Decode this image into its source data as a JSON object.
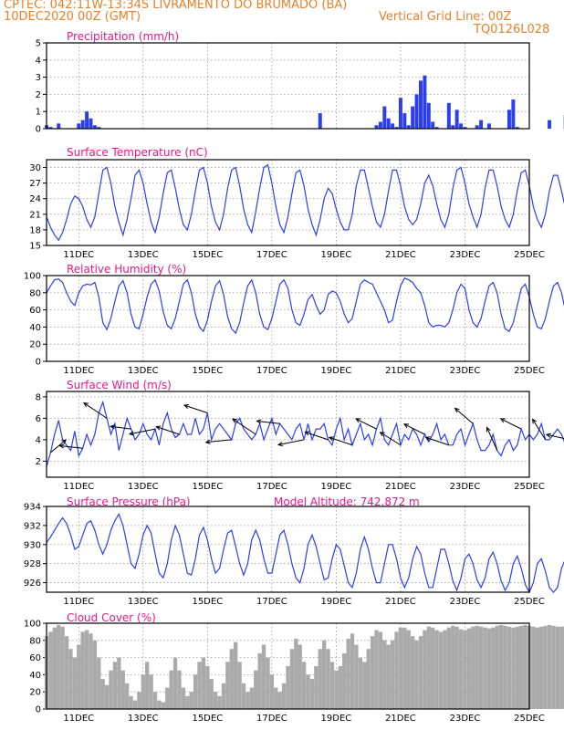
{
  "header": {
    "line1_left": "CPTEC:   042:11W-13:34S   LIVRAMENTO DO BRUMADO (BA)",
    "line2_left": "10DEC2020 00Z (GMT)",
    "line2_right": "Vertical Grid Line: 00Z",
    "line3_right": "TQ0126L028"
  },
  "colors": {
    "header": "#e8802a",
    "title": "#e8178a",
    "series": "#2b3ff0",
    "cloud": "#aaaaaa"
  },
  "chart_data": [
    {
      "type": "bar",
      "title": "Precipitation (mm/h)",
      "ylim": [
        0,
        5
      ],
      "yticks": [
        0,
        1,
        2,
        3,
        4,
        5
      ],
      "x_start_hour": 0,
      "step_hours": 3,
      "values": [
        0.2,
        0.1,
        0,
        0.3,
        0,
        0,
        0,
        0,
        0.3,
        0.5,
        1.0,
        0.6,
        0.2,
        0.1,
        0,
        0,
        0,
        0,
        0,
        0,
        0,
        0,
        0,
        0,
        0,
        0,
        0,
        0,
        0,
        0,
        0,
        0,
        0,
        0,
        0,
        0,
        0,
        0,
        0,
        0,
        0,
        0,
        0,
        0,
        0,
        0,
        0,
        0,
        0,
        0,
        0,
        0,
        0,
        0,
        0,
        0,
        0,
        0,
        0,
        0,
        0,
        0,
        0,
        0,
        0,
        0,
        0,
        0,
        0.9,
        0,
        0,
        0,
        0,
        0,
        0,
        0,
        0,
        0,
        0,
        0,
        0,
        0,
        0.2,
        0.4,
        1.3,
        0.6,
        0.3,
        0.1,
        1.8,
        0.9,
        0.2,
        1.3,
        2.0,
        2.8,
        3.1,
        1.5,
        0.4,
        0.1,
        0,
        0,
        1.5,
        0.2,
        1.1,
        0.3,
        0.1,
        0,
        0,
        0.2,
        0.5,
        0,
        0.3,
        0,
        0,
        0,
        0,
        1.1,
        1.7,
        0.1,
        0,
        0,
        0,
        0,
        0,
        0,
        0,
        0.5,
        0,
        0,
        0,
        0.8,
        0.3,
        0,
        0,
        0,
        0,
        0,
        0,
        0,
        0,
        0,
        0,
        0.3,
        0.9,
        0,
        0,
        0,
        0,
        0,
        0,
        0,
        0,
        0,
        0,
        0
      ]
    },
    {
      "type": "line",
      "title": "Surface Temperature (nC)",
      "ylim": [
        15,
        31.5
      ],
      "yticks": [
        15,
        18,
        21,
        24,
        27,
        30
      ],
      "x_start_hour": 0,
      "step_hours": 3,
      "values": [
        20.5,
        18.5,
        17.0,
        16.0,
        17.5,
        20.0,
        23.0,
        24.5,
        24.0,
        22.5,
        20.0,
        18.5,
        20.5,
        25.0,
        29.5,
        30.0,
        27.0,
        22.5,
        19.5,
        17.0,
        20.0,
        24.0,
        28.5,
        29.5,
        27.0,
        23.0,
        19.5,
        17.5,
        20.5,
        25.0,
        29.0,
        29.5,
        26.0,
        22.0,
        19.0,
        18.0,
        21.0,
        25.5,
        29.5,
        30.0,
        27.0,
        22.5,
        19.5,
        18.0,
        21.0,
        26.0,
        29.5,
        30.0,
        26.5,
        22.0,
        19.0,
        17.5,
        21.5,
        26.0,
        30.0,
        30.5,
        27.0,
        22.5,
        19.0,
        17.5,
        20.5,
        25.0,
        29.0,
        29.5,
        26.5,
        22.0,
        19.0,
        17.0,
        20.0,
        24.0,
        26.0,
        25.0,
        22.0,
        19.5,
        18.0,
        18.0,
        21.0,
        26.5,
        29.5,
        29.5,
        26.0,
        22.5,
        19.5,
        18.5,
        21.0,
        25.5,
        29.5,
        29.5,
        26.5,
        22.5,
        20.0,
        19.0,
        20.0,
        23.0,
        27.0,
        28.5,
        26.5,
        23.0,
        20.0,
        18.5,
        21.0,
        26.0,
        29.5,
        30.0,
        27.0,
        23.0,
        20.5,
        18.5,
        21.0,
        26.0,
        29.5,
        29.5,
        26.5,
        22.5,
        20.0,
        18.5,
        21.0,
        25.5,
        29.0,
        29.5,
        26.5,
        22.5,
        20.0,
        18.5,
        21.0,
        25.5,
        28.5,
        28.5,
        25.5,
        22.0,
        19.5,
        18.0,
        21.0,
        25.5,
        28.0,
        28.0,
        25.0
      ]
    },
    {
      "type": "line",
      "title": "Relative Humidity (%)",
      "ylim": [
        0,
        100
      ],
      "yticks": [
        0,
        20,
        40,
        60,
        80,
        100
      ],
      "x_start_hour": 0,
      "step_hours": 3,
      "values": [
        80,
        88,
        95,
        96,
        92,
        80,
        70,
        65,
        80,
        88,
        90,
        89,
        92,
        75,
        45,
        37,
        50,
        70,
        88,
        94,
        80,
        55,
        40,
        38,
        55,
        75,
        90,
        95,
        82,
        58,
        42,
        38,
        50,
        70,
        90,
        95,
        80,
        55,
        40,
        35,
        48,
        70,
        88,
        94,
        78,
        52,
        38,
        33,
        45,
        68,
        88,
        95,
        80,
        55,
        40,
        37,
        50,
        70,
        90,
        95,
        85,
        60,
        45,
        42,
        55,
        72,
        78,
        65,
        55,
        60,
        78,
        82,
        80,
        70,
        55,
        45,
        50,
        70,
        90,
        95,
        92,
        90,
        80,
        70,
        60,
        45,
        48,
        70,
        88,
        97,
        95,
        92,
        85,
        80,
        65,
        45,
        40,
        42,
        42,
        40,
        45,
        60,
        80,
        90,
        85,
        60,
        45,
        40,
        50,
        70,
        88,
        92,
        80,
        55,
        38,
        35,
        45,
        65,
        85,
        90,
        75,
        55,
        40,
        38,
        50,
        70,
        88,
        92,
        80,
        58,
        45,
        42,
        50,
        65,
        80,
        70,
        55,
        40,
        60
      ]
    },
    {
      "type": "line",
      "title": "Surface Wind (m/s)",
      "ylim": [
        0.5,
        8.5
      ],
      "yticks": [
        2,
        4,
        6,
        8
      ],
      "x_start_hour": 0,
      "step_hours": 3,
      "values": [
        1.5,
        2.8,
        4.5,
        5.8,
        4.0,
        3.5,
        3.0,
        4.8,
        2.5,
        3.2,
        4.5,
        3.5,
        4.5,
        6.5,
        7.5,
        6.0,
        4.5,
        5.5,
        3.0,
        4.5,
        6.0,
        5.0,
        4.0,
        4.5,
        5.5,
        4.5,
        4.0,
        5.0,
        3.5,
        5.5,
        6.5,
        5.0,
        4.2,
        4.5,
        5.5,
        4.5,
        4.5,
        6.0,
        4.5,
        5.0,
        6.5,
        4.0,
        5.0,
        5.5,
        5.0,
        4.5,
        4.0,
        5.5,
        6.0,
        5.0,
        4.5,
        4.0,
        4.5,
        5.5,
        4.0,
        5.0,
        6.0,
        4.5,
        5.5,
        5.0,
        4.5,
        4.0,
        5.0,
        5.5,
        4.0,
        5.5,
        4.0,
        5.0,
        5.0,
        5.5,
        4.0,
        3.5,
        5.0,
        6.0,
        4.0,
        5.0,
        3.5,
        4.5,
        5.5,
        4.0,
        4.5,
        3.5,
        5.0,
        6.0,
        4.0,
        3.5,
        4.5,
        5.5,
        3.5,
        4.5,
        4.0,
        5.0,
        4.5,
        3.5,
        4.5,
        3.8,
        4.5,
        5.5,
        4.0,
        4.5,
        3.5,
        3.5,
        4.5,
        5.0,
        3.5,
        4.5,
        5.5,
        4.0,
        3.0,
        3.0,
        3.5,
        4.5,
        3.0,
        2.5,
        3.5,
        4.0,
        3.0,
        3.5,
        5.0,
        4.0,
        4.5,
        4.0,
        4.5,
        5.5,
        4.0,
        4.0,
        4.5,
        5.0,
        4.5,
        3.5,
        4.0,
        5.0,
        4.5,
        4.0,
        3.5,
        3.0,
        4.0
      ],
      "vectors": [
        [
          1,
          0.6,
          0.5
        ],
        [
          9,
          -0.9,
          0.1
        ],
        [
          15,
          -0.9,
          0.6
        ],
        [
          21,
          -0.8,
          0.1
        ],
        [
          27,
          -1.0,
          -0.2
        ],
        [
          33,
          -0.9,
          0.3
        ],
        [
          40,
          -0.9,
          0.3
        ],
        [
          46,
          -1.0,
          -0.1
        ],
        [
          52,
          -0.9,
          0.6
        ],
        [
          58,
          -0.9,
          0.1
        ],
        [
          64,
          -1.0,
          -0.2
        ],
        [
          70,
          -0.9,
          0.3
        ],
        [
          76,
          -0.9,
          0.3
        ],
        [
          82,
          -0.8,
          0.4
        ],
        [
          88,
          -0.8,
          0.5
        ],
        [
          94,
          -0.8,
          0.4
        ],
        [
          100,
          -0.9,
          0.3
        ],
        [
          106,
          -0.7,
          0.6
        ],
        [
          112,
          -0.4,
          0.9
        ],
        [
          118,
          -0.8,
          0.4
        ],
        [
          124,
          -0.5,
          0.8
        ],
        [
          130,
          -0.9,
          0.2
        ],
        [
          136,
          -0.8,
          0.2
        ]
      ]
    },
    {
      "type": "line",
      "title": "Surface Pressure (hPa)",
      "annotation": "Model Altitude: 742.872 m",
      "ylim": [
        925,
        934
      ],
      "yticks": [
        926,
        928,
        930,
        932,
        934
      ],
      "x_start_hour": 0,
      "step_hours": 3,
      "values": [
        930.2,
        930.8,
        931.5,
        932.2,
        932.8,
        932.2,
        931.0,
        929.5,
        929.8,
        931.0,
        932.2,
        932.5,
        931.5,
        930.0,
        929.0,
        930.0,
        931.5,
        932.5,
        933.2,
        932.0,
        930.0,
        928.0,
        927.5,
        929.0,
        931.0,
        932.0,
        931.2,
        929.0,
        927.0,
        926.5,
        928.0,
        930.5,
        932.0,
        931.0,
        929.0,
        927.0,
        926.8,
        928.5,
        931.0,
        931.8,
        930.5,
        928.5,
        927.0,
        927.5,
        929.5,
        931.2,
        931.5,
        929.8,
        928.0,
        926.8,
        928.0,
        930.5,
        931.5,
        930.5,
        928.5,
        927.0,
        927.0,
        929.0,
        931.0,
        931.5,
        930.0,
        928.0,
        926.5,
        926.0,
        927.5,
        930.0,
        931.0,
        929.8,
        928.0,
        926.3,
        926.5,
        928.5,
        930.0,
        929.5,
        927.8,
        926.0,
        925.5,
        927.0,
        929.5,
        930.8,
        929.5,
        927.5,
        926.0,
        926.0,
        928.0,
        930.0,
        930.0,
        928.5,
        926.5,
        925.5,
        926.5,
        928.5,
        929.8,
        929.0,
        927.0,
        925.5,
        925.5,
        927.5,
        929.5,
        929.5,
        928.0,
        926.2,
        925.2,
        926.5,
        928.5,
        929.0,
        928.0,
        926.3,
        925.5,
        926.5,
        928.5,
        929.2,
        928.0,
        926.2,
        925.2,
        926.0,
        928.0,
        928.8,
        927.5,
        925.8,
        925.0,
        926.0,
        928.0,
        928.5,
        927.2,
        925.5,
        924.8,
        925.5,
        927.5,
        928.5,
        927.2,
        925.5,
        925.0,
        926.5,
        928.5,
        929.8,
        928.5,
        927.0,
        926.0
      ]
    },
    {
      "type": "area",
      "title": "Cloud Cover (%)",
      "ylim": [
        0,
        100
      ],
      "yticks": [
        0,
        20,
        40,
        60,
        80,
        100
      ],
      "x_start_hour": 0,
      "step_hours": 3,
      "values": [
        85,
        90,
        95,
        98,
        96,
        85,
        70,
        60,
        75,
        90,
        92,
        88,
        80,
        60,
        35,
        28,
        45,
        55,
        60,
        45,
        30,
        15,
        10,
        20,
        40,
        55,
        40,
        20,
        10,
        8,
        25,
        45,
        60,
        45,
        25,
        15,
        20,
        40,
        55,
        60,
        50,
        35,
        20,
        15,
        30,
        55,
        70,
        78,
        55,
        30,
        20,
        25,
        45,
        65,
        75,
        60,
        40,
        25,
        20,
        30,
        50,
        70,
        82,
        75,
        55,
        40,
        35,
        50,
        70,
        80,
        70,
        55,
        45,
        50,
        65,
        82,
        88,
        75,
        60,
        55,
        70,
        85,
        92,
        90,
        80,
        75,
        80,
        90,
        95,
        95,
        92,
        85,
        80,
        85,
        92,
        96,
        95,
        92,
        90,
        92,
        95,
        97,
        96,
        93,
        92,
        94,
        96,
        97,
        96,
        95,
        94,
        95,
        97,
        98,
        97,
        96,
        95,
        96,
        97,
        98,
        97,
        96,
        95,
        96,
        97,
        98,
        97,
        96,
        96,
        97,
        98,
        98,
        97,
        96,
        96,
        97,
        98,
        97,
        96
      ]
    }
  ],
  "x_axis": {
    "tick_labels": [
      "11DEC",
      "13DEC",
      "15DEC",
      "17DEC",
      "19DEC",
      "21DEC",
      "23DEC",
      "25DEC"
    ],
    "tick_hours": [
      24,
      72,
      120,
      168,
      216,
      264,
      312,
      360
    ],
    "range_hours": [
      0,
      360
    ]
  }
}
